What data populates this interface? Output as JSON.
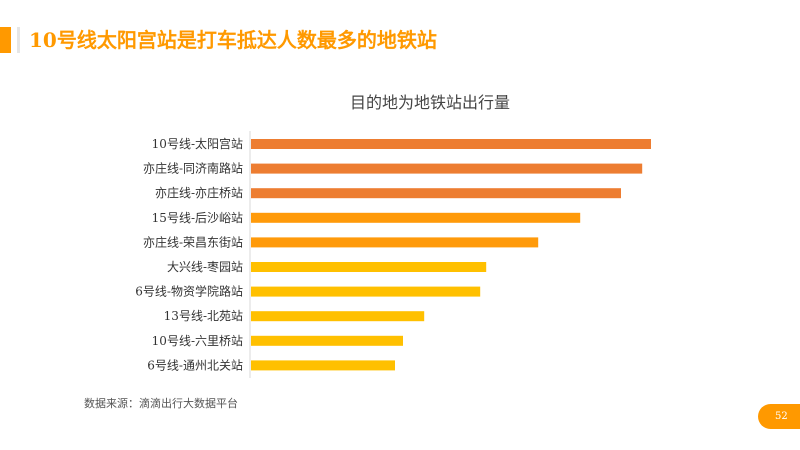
{
  "header": {
    "title": "10号线太阳宫站是打车抵达人数最多的地铁站"
  },
  "footer": {
    "source": "数据来源：滴滴出行大数据平台",
    "page_number": "52"
  },
  "colors": {
    "accent": "#FF9900",
    "dark_orange": "#ED7D31",
    "orange": "#FF9A0A",
    "yellow": "#FFC000"
  },
  "chart_data": {
    "type": "bar",
    "orientation": "horizontal",
    "title": "目的地为地铁站出行量",
    "xlabel": "",
    "ylabel": "",
    "categories": [
      "10号线-太阳宫站",
      "亦庄线-同济南路站",
      "亦庄线-亦庄桥站",
      "15号线-后沙峪站",
      "亦庄线-荣昌东街站",
      "大兴线-枣园站",
      "6号线-物资学院路站",
      "13号线-北苑站",
      "10号线-六里桥站",
      "6号线-通州北关站"
    ],
    "values": [
      100,
      97.8,
      92.5,
      82.3,
      71.8,
      58.8,
      57.3,
      43.3,
      38,
      36
    ],
    "bar_colors": [
      "#ED7D31",
      "#ED7D31",
      "#ED7D31",
      "#FF9A0A",
      "#FF9A0A",
      "#FFC000",
      "#FFC000",
      "#FFC000",
      "#FFC000",
      "#FFC000"
    ],
    "xlim": [
      0,
      100
    ],
    "grid": false,
    "legend": "none"
  }
}
